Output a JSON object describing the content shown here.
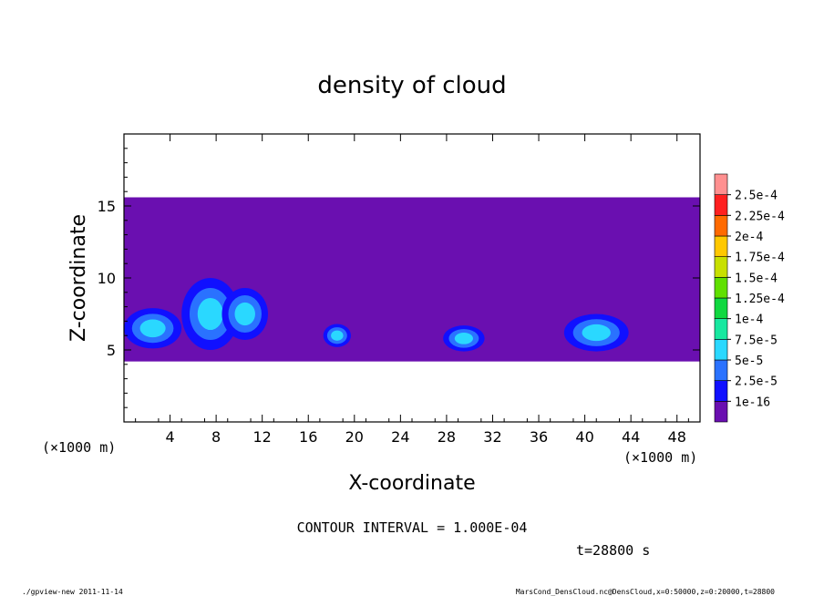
{
  "chart_data": {
    "type": "heatmap",
    "title": "density of cloud",
    "xlabel": "X-coordinate",
    "ylabel": "Z-coordinate",
    "x_unit": "(×1000 m)",
    "x_unit_right": "(×1000 m)",
    "xlim": [
      0,
      50
    ],
    "ylim": [
      0,
      20
    ],
    "x_ticks": [
      4,
      8,
      12,
      16,
      20,
      24,
      28,
      32,
      36,
      40,
      44,
      48
    ],
    "y_ticks": [
      5,
      10,
      15
    ],
    "contour_interval_label": "CONTOUR INTERVAL = 1.000E-04",
    "time_label": "t=28800 s",
    "colorbar": {
      "labels": [
        "1e-16",
        "2.5e-5",
        "5e-5",
        "7.5e-5",
        "1e-4",
        "1.25e-4",
        "1.5e-4",
        "1.75e-4",
        "2e-4",
        "2.25e-4",
        "2.5e-4"
      ],
      "colors": [
        "#6a0fb0",
        "#1010ff",
        "#2a72ff",
        "#2ad8ff",
        "#18e8a0",
        "#10d840",
        "#60e000",
        "#c8e000",
        "#ffc800",
        "#ff6a00",
        "#ff2020",
        "#ff9090"
      ]
    },
    "cloud_layer": {
      "z_bottom": 4.2,
      "z_top": 15.6
    },
    "dense_regions": [
      {
        "x": 2.5,
        "z": 6.5,
        "rx": 2.5,
        "rz": 1.4,
        "level": 3
      },
      {
        "x": 7.5,
        "z": 7.5,
        "rx": 2.5,
        "rz": 2.5,
        "level": 3
      },
      {
        "x": 10.5,
        "z": 7.5,
        "rx": 2.0,
        "rz": 1.8,
        "level": 3
      },
      {
        "x": 18.5,
        "z": 6.0,
        "rx": 1.2,
        "rz": 0.8,
        "level": 3
      },
      {
        "x": 29.5,
        "z": 5.8,
        "rx": 1.8,
        "rz": 0.9,
        "level": 3
      },
      {
        "x": 41.0,
        "z": 6.2,
        "rx": 2.8,
        "rz": 1.3,
        "level": 3
      }
    ]
  },
  "footer": {
    "left": "./gpview-new   2011-11-14",
    "right": "MarsCond_DensCloud.nc@DensCloud,x=0:50000,z=0:20000,t=28800"
  }
}
